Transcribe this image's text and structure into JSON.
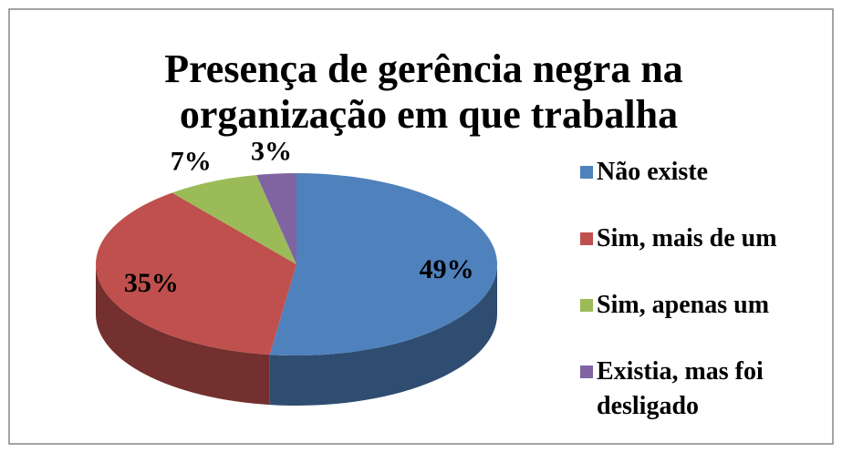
{
  "chart_data": {
    "type": "pie",
    "title": "Presença de gerência negra na organização em que trabalha",
    "categories": [
      "Não existe",
      "Sim, mais de um",
      "Sim, apenas um",
      "Existia, mas foi desligado"
    ],
    "values": [
      49,
      35,
      7,
      3
    ],
    "value_labels": [
      "49%",
      "35%",
      "7%",
      "3%"
    ],
    "colors": [
      "#4f81bd",
      "#c0504d",
      "#9bbb59",
      "#8064a2"
    ],
    "legend": "right",
    "three_d": true
  }
}
